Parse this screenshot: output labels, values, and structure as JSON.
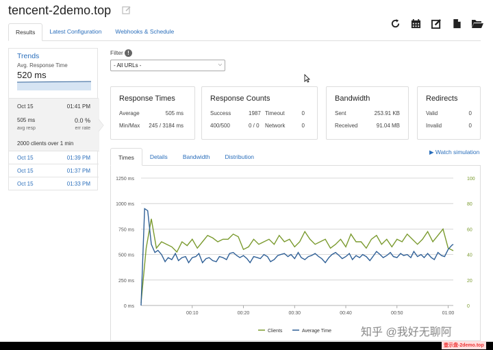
{
  "header": {
    "title": "tencent-2demo.top"
  },
  "tabs": [
    "Results",
    "Latest Configuration",
    "Webhooks & Schedule"
  ],
  "toolbar": [
    "refresh-icon",
    "calendar-icon",
    "edit-icon",
    "file-icon",
    "folder-open-icon"
  ],
  "sidebar": {
    "trends_title": "Trends",
    "trends_sub": "Avg. Response Time",
    "trends_value": "520 ms",
    "current": {
      "date": "Oct 15",
      "time": "01:41 PM",
      "resp_value": "505 ms",
      "resp_label": "avg resp",
      "err_value": "0.0 %",
      "err_label": "err rate",
      "clients": "2000 clients over 1 min"
    },
    "history": [
      {
        "date": "Oct 15",
        "time": "01:39 PM"
      },
      {
        "date": "Oct 15",
        "time": "01:37 PM"
      },
      {
        "date": "Oct 15",
        "time": "01:33 PM"
      }
    ]
  },
  "filter": {
    "label": "Filter",
    "selected": "- All URLs -"
  },
  "cards": {
    "response_times": {
      "title": "Response Times",
      "avg_label": "Average",
      "avg_value": "505 ms",
      "mm_label": "Min/Max",
      "mm_value": "245 / 3184 ms"
    },
    "response_counts": {
      "title": "Response Counts",
      "success_label": "Success",
      "success_value": "1987",
      "timeout_label": "Timeout",
      "timeout_value": "0",
      "r400_label": "400/500",
      "r400_value": "0 / 0",
      "network_label": "Network",
      "network_value": "0"
    },
    "bandwidth": {
      "title": "Bandwidth",
      "sent_label": "Sent",
      "sent_value": "253.91 KB",
      "recv_label": "Received",
      "recv_value": "91.04 MB"
    },
    "redirects": {
      "title": "Redirects",
      "valid_label": "Valid",
      "valid_value": "0",
      "invalid_label": "Invalid",
      "invalid_value": "0"
    }
  },
  "watch_simulation": "Watch simulation",
  "chart_tabs": [
    "Times",
    "Details",
    "Bandwidth",
    "Distribution"
  ],
  "chart_data": {
    "type": "line",
    "x_ticks": [
      "00:10",
      "00:20",
      "00:30",
      "00:40",
      "00:50",
      "01:00"
    ],
    "y_left_ticks": [
      "0 ms",
      "250 ms",
      "500 ms",
      "750 ms",
      "1000 ms",
      "1250 ms"
    ],
    "y_right_ticks": [
      "0",
      "20",
      "40",
      "60",
      "80",
      "100"
    ],
    "ylim_left": [
      0,
      1250
    ],
    "ylim_right": [
      0,
      100
    ],
    "xlim": [
      0,
      61
    ],
    "series": [
      {
        "name": "Clients",
        "axis": "right",
        "color": "#7a9a2e",
        "x": [
          0,
          1,
          2,
          3,
          4,
          5,
          6,
          7,
          8,
          9,
          10,
          11,
          12,
          13,
          14,
          15,
          16,
          17,
          18,
          19,
          20,
          21,
          22,
          23,
          24,
          25,
          26,
          27,
          28,
          29,
          30,
          31,
          32,
          33,
          34,
          35,
          36,
          37,
          38,
          39,
          40,
          41,
          42,
          43,
          44,
          45,
          46,
          47,
          48,
          49,
          50,
          51,
          52,
          53,
          54,
          55,
          56,
          57,
          58,
          59,
          60,
          61
        ],
        "values": [
          2,
          45,
          68,
          45,
          50,
          48,
          46,
          42,
          50,
          47,
          52,
          45,
          50,
          55,
          53,
          50,
          52,
          52,
          56,
          54,
          44,
          46,
          52,
          48,
          50,
          52,
          48,
          55,
          50,
          52,
          46,
          50,
          58,
          52,
          48,
          50,
          52,
          45,
          48,
          52,
          46,
          56,
          50,
          50,
          45,
          52,
          55,
          48,
          52,
          46,
          52,
          50,
          56,
          52,
          48,
          52,
          58,
          50,
          55,
          60,
          45,
          43
        ],
        "point_count": 62
      },
      {
        "name": "Average Time",
        "axis": "left",
        "color": "#2e5f96",
        "x": [
          0,
          0.7,
          1.3,
          2,
          2.7,
          3.3,
          4,
          4.7,
          5.3,
          6,
          6.7,
          7.3,
          8,
          8.7,
          9.3,
          10,
          10.7,
          11.3,
          12,
          12.7,
          13.3,
          14,
          14.7,
          15.3,
          16,
          16.7,
          17.3,
          18,
          18.7,
          19.3,
          20,
          20.7,
          21.3,
          22,
          22.7,
          23.3,
          24,
          24.7,
          25.3,
          26,
          26.7,
          27.3,
          28,
          28.7,
          29.3,
          30,
          30.7,
          31.3,
          32,
          32.7,
          33.3,
          34,
          34.7,
          35.3,
          36,
          36.7,
          37.3,
          38,
          38.7,
          39.3,
          40,
          40.7,
          41.3,
          42,
          42.7,
          43.3,
          44,
          44.7,
          45.3,
          46,
          46.7,
          47.3,
          48,
          48.7,
          49.3,
          50,
          50.7,
          51.3,
          52,
          52.7,
          53.3,
          54,
          54.7,
          55.3,
          56,
          56.7,
          57.3,
          58,
          58.7,
          59.3,
          60,
          60.7,
          61
        ],
        "values": [
          0,
          950,
          930,
          600,
          520,
          540,
          500,
          430,
          470,
          450,
          510,
          440,
          470,
          480,
          420,
          470,
          480,
          510,
          420,
          460,
          470,
          440,
          430,
          480,
          470,
          450,
          510,
          520,
          490,
          470,
          490,
          460,
          420,
          480,
          470,
          460,
          500,
          480,
          430,
          450,
          490,
          500,
          510,
          480,
          500,
          460,
          520,
          470,
          450,
          480,
          490,
          510,
          480,
          460,
          420,
          470,
          500,
          520,
          490,
          460,
          480,
          510,
          450,
          490,
          470,
          500,
          480,
          440,
          480,
          530,
          500,
          470,
          490,
          520,
          480,
          470,
          510,
          490,
          500,
          470,
          530,
          480,
          500,
          470,
          510,
          470,
          450,
          520,
          490,
          480,
          550,
          590,
          600
        ],
        "point_count": 93
      }
    ],
    "legend_position": "bottom",
    "grid": "horizontal"
  },
  "watermark": {
    "text": "知乎 @我好无聊阿",
    "badge": "壹示盘-2demo.top"
  }
}
